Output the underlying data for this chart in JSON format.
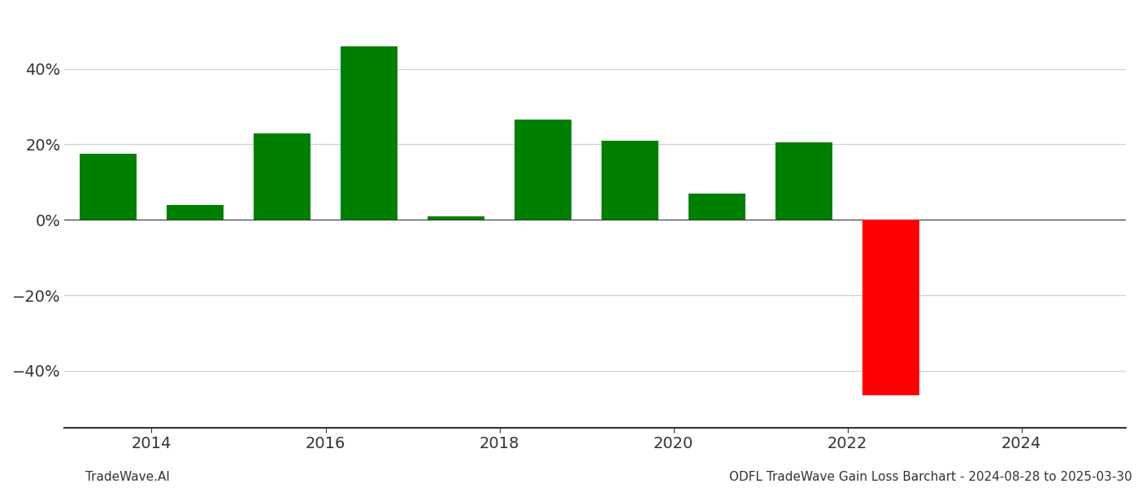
{
  "years": [
    2013.5,
    2014.5,
    2015.5,
    2016.5,
    2017.5,
    2018.5,
    2019.5,
    2020.5,
    2021.5,
    2022.5,
    2023.5
  ],
  "values": [
    17.5,
    4.0,
    23.0,
    46.0,
    1.0,
    26.5,
    21.0,
    7.0,
    20.5,
    -46.5,
    0
  ],
  "bar_colors": [
    "#008000",
    "#008000",
    "#008000",
    "#008000",
    "#008000",
    "#008000",
    "#008000",
    "#008000",
    "#008000",
    "#ff0000",
    "#ff0000"
  ],
  "bar_width": 0.65,
  "ylim": [
    -55,
    55
  ],
  "yticks": [
    -40,
    -20,
    0,
    20,
    40
  ],
  "xticks": [
    2014,
    2016,
    2018,
    2020,
    2022,
    2024
  ],
  "xlim_left": 2013.0,
  "xlim_right": 2025.2,
  "xlabel": "",
  "ylabel": "",
  "title": "",
  "footer_left": "TradeWave.AI",
  "footer_right": "ODFL TradeWave Gain Loss Barchart - 2024-08-28 to 2025-03-30",
  "grid_color": "#cccccc",
  "axis_color": "#333333",
  "background_color": "#ffffff",
  "bar_edge_color": "none",
  "footer_fontsize": 11,
  "tick_fontsize": 14
}
